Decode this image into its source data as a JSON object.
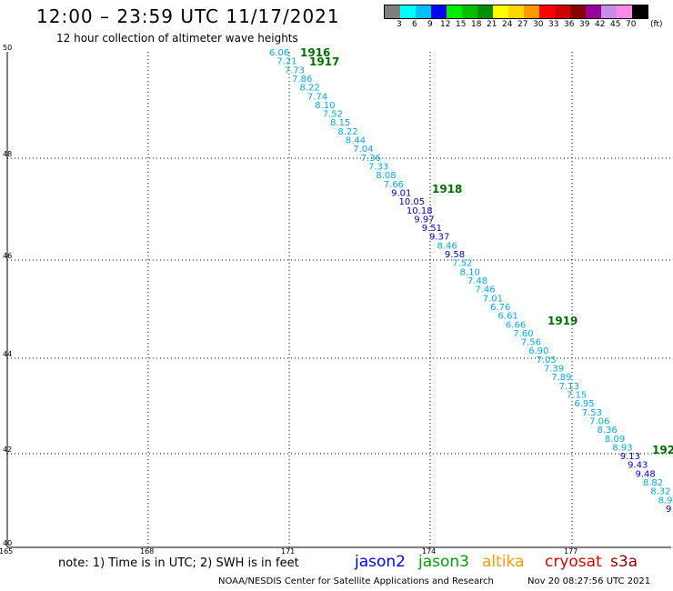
{
  "header": {
    "title": "12:00 – 23:59 UTC 11/17/2021",
    "subtitle": "12 hour collection of altimeter wave heights"
  },
  "legend": {
    "colors": [
      "#7f7f7f",
      "#00ffff",
      "#00bfff",
      "#0000ff",
      "#00ee00",
      "#00c000",
      "#009000",
      "#ffff00",
      "#ffd700",
      "#ff9900",
      "#ff0000",
      "#cc0000",
      "#880000",
      "#990099",
      "#c88ee8",
      "#ff88e8",
      "#000000"
    ],
    "labels": [
      "3",
      "6",
      "9",
      "12",
      "15",
      "18",
      "21",
      "24",
      "27",
      "30",
      "33",
      "36",
      "39",
      "42",
      "45",
      "70"
    ],
    "unit": "(ft)"
  },
  "axes": {
    "y_labels": [
      "50",
      "48",
      "46",
      "44",
      "42",
      "40"
    ],
    "x_labels": [
      "165",
      "168",
      "171",
      "174",
      "177"
    ]
  },
  "track_labels": [
    {
      "text": "1916",
      "color": "#007000"
    },
    {
      "text": "1917",
      "color": "#007000"
    },
    {
      "text": "1918",
      "color": "#007000"
    },
    {
      "text": "1919",
      "color": "#007000"
    },
    {
      "text": "192",
      "color": "#007000"
    }
  ],
  "observations": [
    {
      "value": "6.06",
      "color": "#00aaee"
    },
    {
      "value": "7.21",
      "color": "#00aaee"
    },
    {
      "value": "7.73",
      "color": "#00aaee"
    },
    {
      "value": "7.86",
      "color": "#00aaee"
    },
    {
      "value": "8.22",
      "color": "#00aaee"
    },
    {
      "value": "7.74",
      "color": "#00aaee"
    },
    {
      "value": "8.10",
      "color": "#00aaee"
    },
    {
      "value": "7.52",
      "color": "#00aaee"
    },
    {
      "value": "8.15",
      "color": "#00aaee"
    },
    {
      "value": "8.22",
      "color": "#00aaee"
    },
    {
      "value": "8.44",
      "color": "#00aaee"
    },
    {
      "value": "7.04",
      "color": "#00aaee"
    },
    {
      "value": "7.36",
      "color": "#00aaee"
    },
    {
      "value": "7.33",
      "color": "#00aaee"
    },
    {
      "value": "8.08",
      "color": "#00aaee"
    },
    {
      "value": "7.66",
      "color": "#00aaee"
    },
    {
      "value": "9.01",
      "color": "#0000cc"
    },
    {
      "value": "10.05",
      "color": "#0000cc"
    },
    {
      "value": "10.18",
      "color": "#0000cc"
    },
    {
      "value": "9.97",
      "color": "#0000cc"
    },
    {
      "value": "9.51",
      "color": "#0000cc"
    },
    {
      "value": "9.37",
      "color": "#0000cc"
    },
    {
      "value": "8.46",
      "color": "#00aaee"
    },
    {
      "value": "9.58",
      "color": "#0000cc"
    },
    {
      "value": "7.52",
      "color": "#00aaee"
    },
    {
      "value": "8.10",
      "color": "#00aaee"
    },
    {
      "value": "7.48",
      "color": "#00aaee"
    },
    {
      "value": "7.46",
      "color": "#00aaee"
    },
    {
      "value": "7.01",
      "color": "#00aaee"
    },
    {
      "value": "6.76",
      "color": "#00aaee"
    },
    {
      "value": "6.61",
      "color": "#00aaee"
    },
    {
      "value": "6.66",
      "color": "#00aaee"
    },
    {
      "value": "7.60",
      "color": "#00aaee"
    },
    {
      "value": "7.56",
      "color": "#00aaee"
    },
    {
      "value": "6.90",
      "color": "#00aaee"
    },
    {
      "value": "7.05",
      "color": "#00aaee"
    },
    {
      "value": "7.39",
      "color": "#00aaee"
    },
    {
      "value": "7.89",
      "color": "#00aaee"
    },
    {
      "value": "7.13",
      "color": "#00aaee"
    },
    {
      "value": "7.15",
      "color": "#00aaee"
    },
    {
      "value": "6.95",
      "color": "#00aaee"
    },
    {
      "value": "7.53",
      "color": "#00aaee"
    },
    {
      "value": "7.06",
      "color": "#00aaee"
    },
    {
      "value": "8.36",
      "color": "#00aaee"
    },
    {
      "value": "8.09",
      "color": "#00aaee"
    },
    {
      "value": "8.93",
      "color": "#00aaee"
    },
    {
      "value": "9.13",
      "color": "#0000cc"
    },
    {
      "value": "9.43",
      "color": "#0000cc"
    },
    {
      "value": "9.48",
      "color": "#0000cc"
    },
    {
      "value": "8.82",
      "color": "#00aaee"
    },
    {
      "value": "8.32",
      "color": "#00aaee"
    },
    {
      "value": "8.9",
      "color": "#00aaee"
    },
    {
      "value": "9",
      "color": "#0000cc"
    }
  ],
  "note": "note:  1) Time is in UTC;  2) SWH is in feet",
  "satellites": [
    {
      "name": "jason2",
      "color": "#0000ff"
    },
    {
      "name": "jason3",
      "color": "#00a000"
    },
    {
      "name": "altika",
      "color": "#ff9900"
    },
    {
      "name": "cryosat",
      "color": "#dd0000"
    },
    {
      "name": "s3a",
      "color": "#990000"
    }
  ],
  "footer": {
    "credit": "NOAA/NESDIS Center for Satellite Applications and Research",
    "timestamp": "Nov 20 08:27:56 UTC 2021"
  }
}
